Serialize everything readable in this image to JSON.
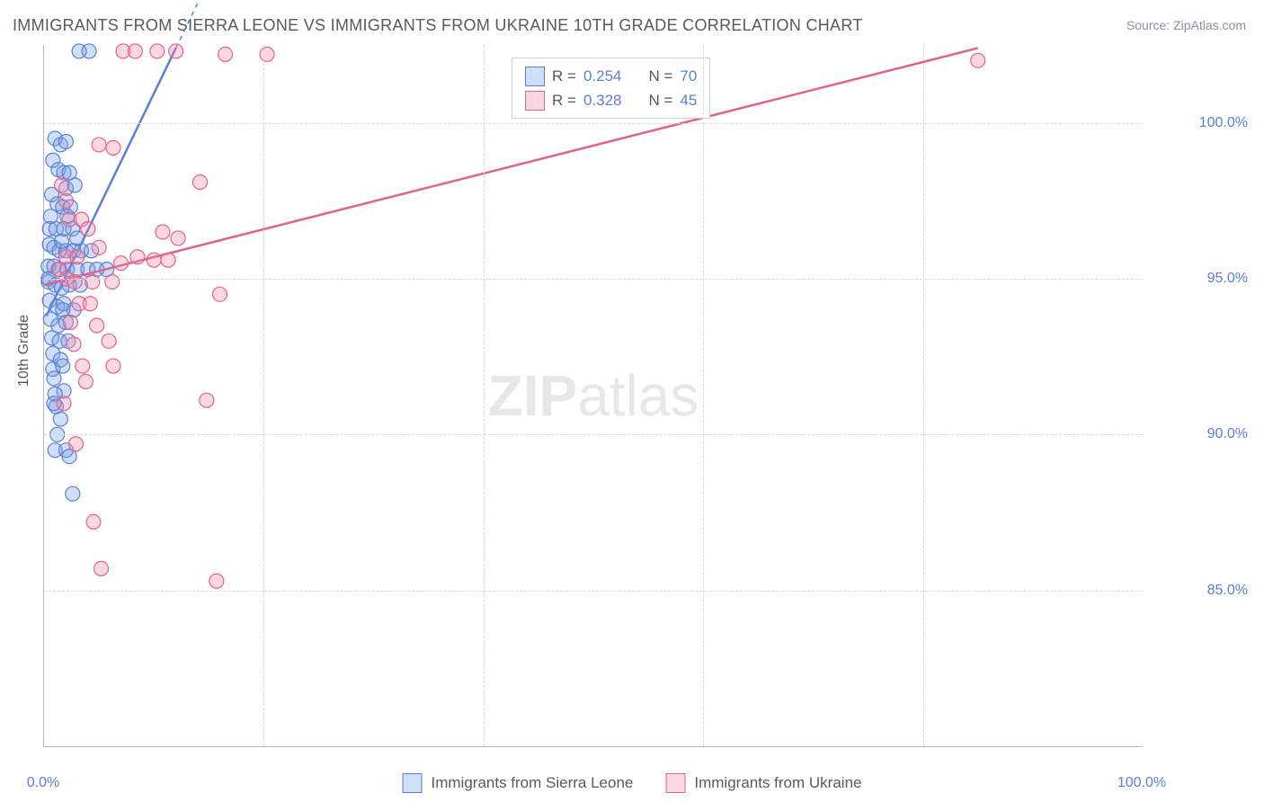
{
  "title": "IMMIGRANTS FROM SIERRA LEONE VS IMMIGRANTS FROM UKRAINE 10TH GRADE CORRELATION CHART",
  "source": "Source: ZipAtlas.com",
  "watermark_a": "ZIP",
  "watermark_b": "atlas",
  "yaxis_label": "10th Grade",
  "chart": {
    "type": "scatter",
    "background_color": "#ffffff",
    "grid_color": "#d8d8d8",
    "axis_color": "#b8b8b8",
    "label_color": "#555a60",
    "tick_color": "#5a7fd4",
    "title_fontsize": 18,
    "tick_fontsize": 16,
    "xlim": [
      0,
      100
    ],
    "ylim": [
      80,
      102.5
    ],
    "yticks": [
      {
        "v": 85.0,
        "label": "85.0%"
      },
      {
        "v": 90.0,
        "label": "90.0%"
      },
      {
        "v": 95.0,
        "label": "95.0%"
      },
      {
        "v": 100.0,
        "label": "100.0%"
      }
    ],
    "xticks": [
      {
        "v": 0.0,
        "label": "0.0%"
      },
      {
        "v": 100.0,
        "label": "100.0%"
      }
    ],
    "x_gridlines": [
      20,
      40,
      60,
      80
    ],
    "marker_radius": 8,
    "marker_stroke_width": 1.2,
    "series": [
      {
        "name": "Immigrants from Sierra Leone",
        "fill": "rgba(120,160,230,0.35)",
        "stroke": "#5a7fd4",
        "swatch_fill": "rgba(120,160,230,0.35)",
        "swatch_border": "#5a7fd4",
        "R": "0.254",
        "N": "70",
        "trend": {
          "x1": 0.2,
          "y1": 93.8,
          "x2": 12.0,
          "y2": 102.4,
          "dash_ext_x2": 16.0
        },
        "points": [
          [
            3.2,
            102.3
          ],
          [
            4.1,
            102.3
          ],
          [
            1.0,
            99.5
          ],
          [
            1.5,
            99.3
          ],
          [
            2.0,
            99.4
          ],
          [
            0.8,
            98.8
          ],
          [
            1.3,
            98.5
          ],
          [
            1.8,
            98.4
          ],
          [
            2.3,
            98.4
          ],
          [
            2.0,
            97.9
          ],
          [
            2.8,
            98.0
          ],
          [
            0.7,
            97.7
          ],
          [
            1.2,
            97.4
          ],
          [
            1.7,
            97.3
          ],
          [
            2.4,
            97.3
          ],
          [
            0.6,
            97.0
          ],
          [
            2.1,
            97.0
          ],
          [
            0.5,
            96.6
          ],
          [
            1.1,
            96.6
          ],
          [
            1.8,
            96.6
          ],
          [
            2.6,
            96.6
          ],
          [
            0.5,
            96.1
          ],
          [
            0.9,
            96.0
          ],
          [
            1.4,
            95.9
          ],
          [
            2.0,
            95.9
          ],
          [
            2.7,
            95.9
          ],
          [
            3.4,
            95.9
          ],
          [
            4.3,
            95.9
          ],
          [
            0.4,
            95.4
          ],
          [
            0.9,
            95.4
          ],
          [
            1.4,
            95.3
          ],
          [
            2.1,
            95.3
          ],
          [
            3.0,
            95.3
          ],
          [
            4.0,
            95.3
          ],
          [
            4.8,
            95.3
          ],
          [
            5.7,
            95.3
          ],
          [
            0.4,
            94.9
          ],
          [
            1.0,
            94.8
          ],
          [
            1.6,
            94.7
          ],
          [
            2.3,
            94.8
          ],
          [
            3.3,
            94.8
          ],
          [
            0.5,
            94.3
          ],
          [
            1.2,
            94.1
          ],
          [
            1.8,
            94.2
          ],
          [
            2.7,
            94.0
          ],
          [
            0.6,
            93.7
          ],
          [
            1.3,
            93.5
          ],
          [
            2.0,
            93.6
          ],
          [
            0.7,
            93.1
          ],
          [
            1.4,
            93.0
          ],
          [
            2.2,
            93.0
          ],
          [
            0.8,
            92.6
          ],
          [
            1.5,
            92.4
          ],
          [
            0.8,
            92.1
          ],
          [
            1.7,
            92.2
          ],
          [
            0.9,
            91.8
          ],
          [
            1.8,
            91.4
          ],
          [
            1.0,
            91.3
          ],
          [
            1.1,
            90.9
          ],
          [
            1.5,
            90.5
          ],
          [
            1.2,
            90.0
          ],
          [
            1.0,
            89.5
          ],
          [
            2.0,
            89.5
          ],
          [
            2.3,
            89.3
          ],
          [
            2.6,
            88.1
          ],
          [
            0.9,
            91.0
          ],
          [
            1.6,
            96.2
          ],
          [
            0.4,
            95.0
          ],
          [
            3.0,
            96.3
          ],
          [
            1.7,
            94.0
          ]
        ]
      },
      {
        "name": "Immigrants from Ukraine",
        "fill": "rgba(240,140,170,0.35)",
        "stroke": "#e06290",
        "swatch_fill": "rgba(240,140,170,0.35)",
        "swatch_border": "#e06290",
        "R": "0.328",
        "N": "45",
        "trend": {
          "x1": 0.0,
          "y1": 94.8,
          "x2": 85.0,
          "y2": 102.4,
          "dash_ext_x2": 85.0
        },
        "points": [
          [
            7.2,
            102.3
          ],
          [
            8.3,
            102.3
          ],
          [
            10.3,
            102.3
          ],
          [
            12.0,
            102.3
          ],
          [
            16.5,
            102.2
          ],
          [
            20.3,
            102.2
          ],
          [
            85.0,
            102.0
          ],
          [
            5.0,
            99.3
          ],
          [
            6.3,
            99.2
          ],
          [
            14.2,
            98.1
          ],
          [
            1.6,
            98.0
          ],
          [
            2.3,
            96.9
          ],
          [
            3.4,
            96.9
          ],
          [
            4.0,
            96.6
          ],
          [
            10.8,
            96.5
          ],
          [
            12.2,
            96.3
          ],
          [
            10.0,
            95.6
          ],
          [
            11.3,
            95.6
          ],
          [
            1.3,
            95.3
          ],
          [
            2.0,
            95.0
          ],
          [
            2.8,
            94.9
          ],
          [
            4.4,
            94.9
          ],
          [
            6.2,
            94.9
          ],
          [
            3.2,
            94.2
          ],
          [
            4.2,
            94.2
          ],
          [
            16.0,
            94.5
          ],
          [
            2.4,
            93.6
          ],
          [
            4.8,
            93.5
          ],
          [
            5.9,
            93.0
          ],
          [
            2.7,
            92.9
          ],
          [
            3.5,
            92.2
          ],
          [
            6.3,
            92.2
          ],
          [
            3.8,
            91.7
          ],
          [
            1.8,
            91.0
          ],
          [
            14.8,
            91.1
          ],
          [
            2.9,
            89.7
          ],
          [
            4.5,
            87.2
          ],
          [
            5.2,
            85.7
          ],
          [
            15.7,
            85.3
          ],
          [
            2.0,
            95.7
          ],
          [
            3.0,
            95.7
          ],
          [
            5.0,
            96.0
          ],
          [
            7.0,
            95.5
          ],
          [
            8.5,
            95.7
          ],
          [
            2.0,
            97.5
          ]
        ]
      }
    ]
  },
  "legend_text": {
    "R": "R =",
    "N": "N ="
  }
}
